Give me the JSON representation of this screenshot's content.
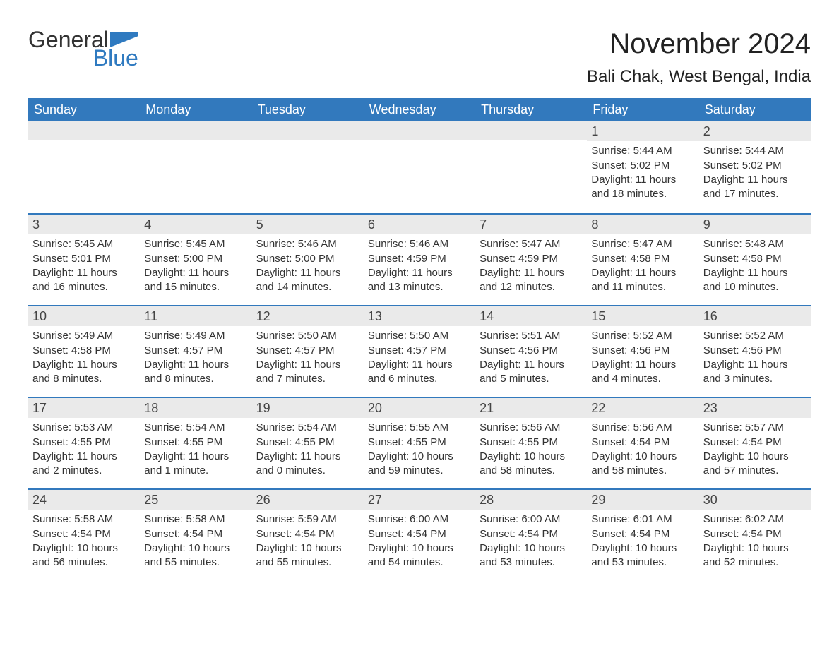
{
  "brand": {
    "name1": "General",
    "name2": "Blue",
    "color": "#2f7ac0"
  },
  "title": "November 2024",
  "location": "Bali Chak, West Bengal, India",
  "colors": {
    "header_bg": "#3279bd",
    "header_text": "#ffffff",
    "daynum_bg": "#eaeaea",
    "week_border": "#3279bd",
    "body_text": "#333333",
    "page_bg": "#ffffff"
  },
  "weekdays": [
    "Sunday",
    "Monday",
    "Tuesday",
    "Wednesday",
    "Thursday",
    "Friday",
    "Saturday"
  ],
  "weeks": [
    [
      null,
      null,
      null,
      null,
      null,
      {
        "n": "1",
        "sunrise": "Sunrise: 5:44 AM",
        "sunset": "Sunset: 5:02 PM",
        "daylight": "Daylight: 11 hours and 18 minutes."
      },
      {
        "n": "2",
        "sunrise": "Sunrise: 5:44 AM",
        "sunset": "Sunset: 5:02 PM",
        "daylight": "Daylight: 11 hours and 17 minutes."
      }
    ],
    [
      {
        "n": "3",
        "sunrise": "Sunrise: 5:45 AM",
        "sunset": "Sunset: 5:01 PM",
        "daylight": "Daylight: 11 hours and 16 minutes."
      },
      {
        "n": "4",
        "sunrise": "Sunrise: 5:45 AM",
        "sunset": "Sunset: 5:00 PM",
        "daylight": "Daylight: 11 hours and 15 minutes."
      },
      {
        "n": "5",
        "sunrise": "Sunrise: 5:46 AM",
        "sunset": "Sunset: 5:00 PM",
        "daylight": "Daylight: 11 hours and 14 minutes."
      },
      {
        "n": "6",
        "sunrise": "Sunrise: 5:46 AM",
        "sunset": "Sunset: 4:59 PM",
        "daylight": "Daylight: 11 hours and 13 minutes."
      },
      {
        "n": "7",
        "sunrise": "Sunrise: 5:47 AM",
        "sunset": "Sunset: 4:59 PM",
        "daylight": "Daylight: 11 hours and 12 minutes."
      },
      {
        "n": "8",
        "sunrise": "Sunrise: 5:47 AM",
        "sunset": "Sunset: 4:58 PM",
        "daylight": "Daylight: 11 hours and 11 minutes."
      },
      {
        "n": "9",
        "sunrise": "Sunrise: 5:48 AM",
        "sunset": "Sunset: 4:58 PM",
        "daylight": "Daylight: 11 hours and 10 minutes."
      }
    ],
    [
      {
        "n": "10",
        "sunrise": "Sunrise: 5:49 AM",
        "sunset": "Sunset: 4:58 PM",
        "daylight": "Daylight: 11 hours and 8 minutes."
      },
      {
        "n": "11",
        "sunrise": "Sunrise: 5:49 AM",
        "sunset": "Sunset: 4:57 PM",
        "daylight": "Daylight: 11 hours and 8 minutes."
      },
      {
        "n": "12",
        "sunrise": "Sunrise: 5:50 AM",
        "sunset": "Sunset: 4:57 PM",
        "daylight": "Daylight: 11 hours and 7 minutes."
      },
      {
        "n": "13",
        "sunrise": "Sunrise: 5:50 AM",
        "sunset": "Sunset: 4:57 PM",
        "daylight": "Daylight: 11 hours and 6 minutes."
      },
      {
        "n": "14",
        "sunrise": "Sunrise: 5:51 AM",
        "sunset": "Sunset: 4:56 PM",
        "daylight": "Daylight: 11 hours and 5 minutes."
      },
      {
        "n": "15",
        "sunrise": "Sunrise: 5:52 AM",
        "sunset": "Sunset: 4:56 PM",
        "daylight": "Daylight: 11 hours and 4 minutes."
      },
      {
        "n": "16",
        "sunrise": "Sunrise: 5:52 AM",
        "sunset": "Sunset: 4:56 PM",
        "daylight": "Daylight: 11 hours and 3 minutes."
      }
    ],
    [
      {
        "n": "17",
        "sunrise": "Sunrise: 5:53 AM",
        "sunset": "Sunset: 4:55 PM",
        "daylight": "Daylight: 11 hours and 2 minutes."
      },
      {
        "n": "18",
        "sunrise": "Sunrise: 5:54 AM",
        "sunset": "Sunset: 4:55 PM",
        "daylight": "Daylight: 11 hours and 1 minute."
      },
      {
        "n": "19",
        "sunrise": "Sunrise: 5:54 AM",
        "sunset": "Sunset: 4:55 PM",
        "daylight": "Daylight: 11 hours and 0 minutes."
      },
      {
        "n": "20",
        "sunrise": "Sunrise: 5:55 AM",
        "sunset": "Sunset: 4:55 PM",
        "daylight": "Daylight: 10 hours and 59 minutes."
      },
      {
        "n": "21",
        "sunrise": "Sunrise: 5:56 AM",
        "sunset": "Sunset: 4:55 PM",
        "daylight": "Daylight: 10 hours and 58 minutes."
      },
      {
        "n": "22",
        "sunrise": "Sunrise: 5:56 AM",
        "sunset": "Sunset: 4:54 PM",
        "daylight": "Daylight: 10 hours and 58 minutes."
      },
      {
        "n": "23",
        "sunrise": "Sunrise: 5:57 AM",
        "sunset": "Sunset: 4:54 PM",
        "daylight": "Daylight: 10 hours and 57 minutes."
      }
    ],
    [
      {
        "n": "24",
        "sunrise": "Sunrise: 5:58 AM",
        "sunset": "Sunset: 4:54 PM",
        "daylight": "Daylight: 10 hours and 56 minutes."
      },
      {
        "n": "25",
        "sunrise": "Sunrise: 5:58 AM",
        "sunset": "Sunset: 4:54 PM",
        "daylight": "Daylight: 10 hours and 55 minutes."
      },
      {
        "n": "26",
        "sunrise": "Sunrise: 5:59 AM",
        "sunset": "Sunset: 4:54 PM",
        "daylight": "Daylight: 10 hours and 55 minutes."
      },
      {
        "n": "27",
        "sunrise": "Sunrise: 6:00 AM",
        "sunset": "Sunset: 4:54 PM",
        "daylight": "Daylight: 10 hours and 54 minutes."
      },
      {
        "n": "28",
        "sunrise": "Sunrise: 6:00 AM",
        "sunset": "Sunset: 4:54 PM",
        "daylight": "Daylight: 10 hours and 53 minutes."
      },
      {
        "n": "29",
        "sunrise": "Sunrise: 6:01 AM",
        "sunset": "Sunset: 4:54 PM",
        "daylight": "Daylight: 10 hours and 53 minutes."
      },
      {
        "n": "30",
        "sunrise": "Sunrise: 6:02 AM",
        "sunset": "Sunset: 4:54 PM",
        "daylight": "Daylight: 10 hours and 52 minutes."
      }
    ]
  ]
}
